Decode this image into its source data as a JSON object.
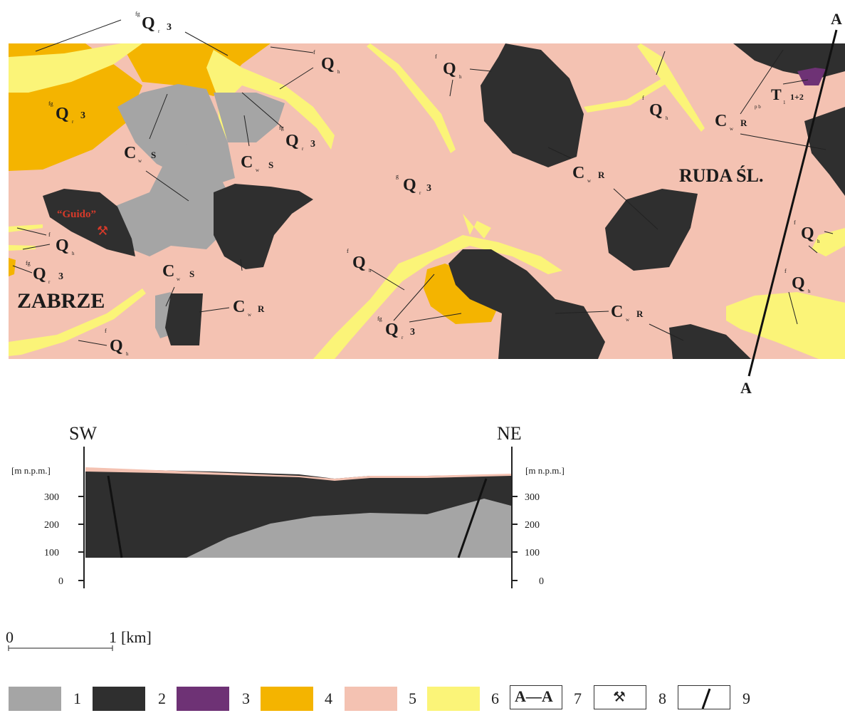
{
  "map": {
    "labels": {
      "qr3_top": "Q",
      "qr3_top_sub": "r",
      "qr3_top_num": "3",
      "qr3_top_pre": "fg",
      "qr3_left": "Q",
      "qr3_left_sub": "r",
      "qr3_left_num": "3",
      "qr3_left_pre": "fg",
      "qh_top": "Q",
      "qh_top_sub": "h",
      "qh_top_pre": "f",
      "qh_center": "Q",
      "qh_center_sub": "h",
      "qh_center_pre": "f",
      "qh_right": "Q",
      "qh_right_sub": "h",
      "qh_right_pre": "f",
      "qr3_mid": "Q",
      "qr3_mid_sub": "r",
      "qr3_mid_num": "3",
      "qr3_mid_pre": "fg",
      "cws_1": "C",
      "cws_1_sub": "w",
      "cws_1_s": "S",
      "cws_2": "C",
      "cws_2_sub": "w",
      "cws_2_s": "S",
      "cws_3": "C",
      "cws_3_sub": "w",
      "cws_3_s": "S",
      "cwr_1": "C",
      "cwr_1_sub": "w",
      "cwr_1_r": "R",
      "cwr_2": "C",
      "cwr_2_sub": "w",
      "cwr_2_r": "R",
      "cwr_3": "C",
      "cwr_3_sub": "w",
      "cwr_3_r": "R",
      "cwr_4": "C",
      "cwr_4_sub": "w",
      "cwr_4_r": "R",
      "qr3_center": "Q",
      "qr3_center_sub": "r",
      "qr3_center_num": "3",
      "qr3_center_pre": "g",
      "t12": "T",
      "t12_sub": "1",
      "t12_num": "1+2",
      "t12_pre": "p b",
      "qh_left1": "Q",
      "qh_left1_sub": "h",
      "qh_left1_pre": "f",
      "qr3_left2": "Q",
      "qr3_left2_sub": "r",
      "qr3_left2_num": "3",
      "qr3_left2_pre": "fg",
      "qh_bottom_left": "Q",
      "qh_bottom_left_sub": "h",
      "qh_bottom_left_pre": "f",
      "qh_mid_left": "Q",
      "qh_mid_left_sub": "h",
      "qh_mid_left_pre": "f",
      "qr3_bottom_mid": "Q",
      "qr3_bottom_mid_sub": "r",
      "qr3_bottom_mid_num": "3",
      "qr3_bottom_mid_pre": "fg",
      "qh_right_mid": "Q",
      "qh_right_mid_sub": "h",
      "qh_right_mid_pre": "f",
      "qh_right_low": "Q",
      "qh_right_low_sub": "h",
      "qh_right_low_pre": "f",
      "qh_upper_right": "Q",
      "qh_upper_right_sub": "h",
      "qh_upper_right_pre": "f",
      "qh_upper_mid": "Q",
      "qh_upper_mid_sub": "h",
      "qh_upper_mid_pre": "f",
      "zabrze": "ZABRZE",
      "ruda": "RUDA ŚL.",
      "guido": "“Guido”",
      "mine_symbol": "⚒",
      "section_a_top": "A",
      "section_a_bottom": "A"
    }
  },
  "cross_section": {
    "left_label": "SW",
    "right_label": "NE",
    "unit_left": "[m n.p.m.]",
    "unit_right": "[m n.p.m.]",
    "ticks": [
      "300",
      "200",
      "100",
      "0"
    ]
  },
  "scale_bar": {
    "zero": "0",
    "one": "1",
    "unit": "[km]"
  },
  "legend": {
    "items": [
      {
        "num": "1",
        "color": "#a5a5a5"
      },
      {
        "num": "2",
        "color": "#2f2f2f"
      },
      {
        "num": "3",
        "color": "#6e3275"
      },
      {
        "num": "4",
        "color": "#f4b400"
      },
      {
        "num": "5",
        "color": "#f4c2b2"
      },
      {
        "num": "6",
        "color": "#fbf478"
      }
    ],
    "section_symbol": "A—A",
    "section_num": "7",
    "mine_symbol": "⚒",
    "mine_num": "8",
    "fault_num": "9"
  },
  "colors": {
    "cws_gray": "#a5a5a5",
    "cwr_dark": "#2f2f2f",
    "triassic": "#6e3275",
    "fluvioglacial": "#f4b400",
    "loess": "#f4c2b2",
    "alluvial": "#fbf478",
    "red_text": "#d63a2a"
  }
}
